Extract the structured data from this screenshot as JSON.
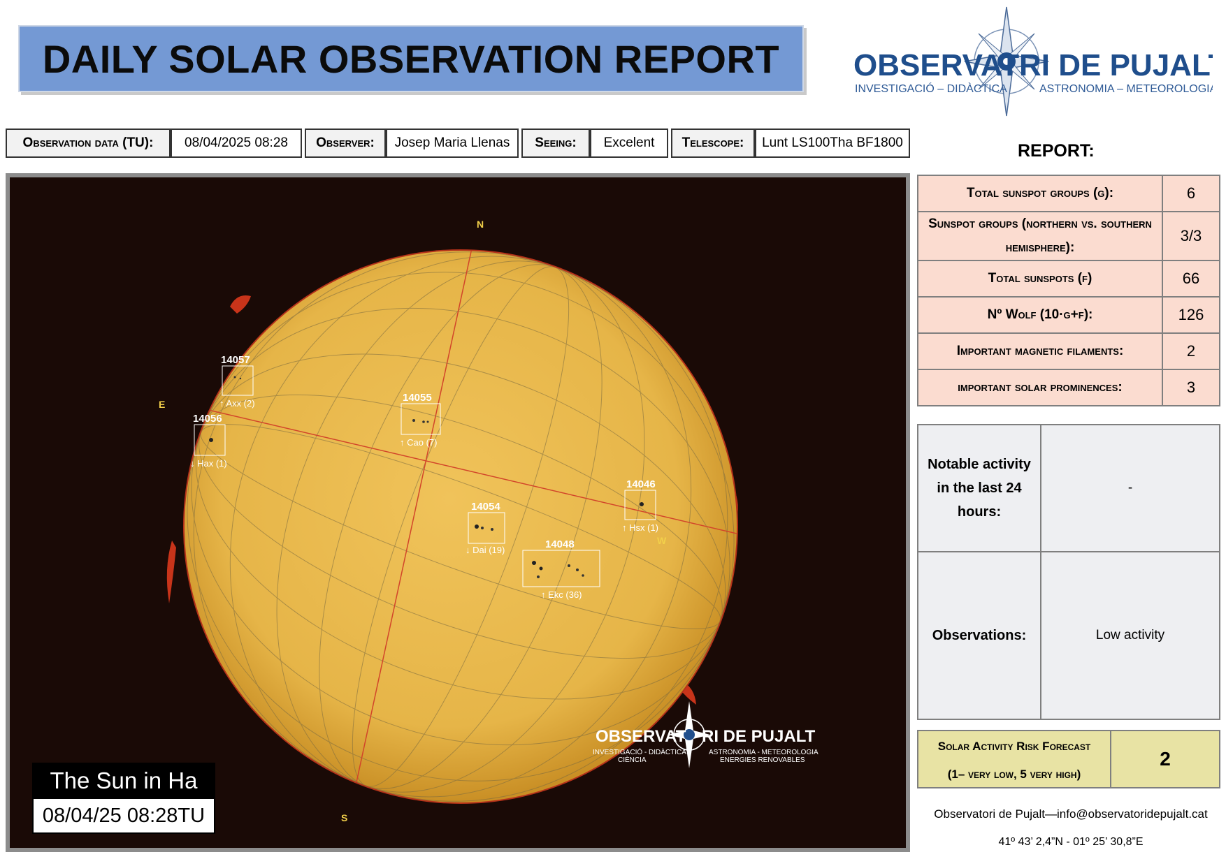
{
  "title": "DAILY SOLAR OBSERVATION REPORT",
  "logo": {
    "name": "OBSERVATORI DE PUJALT",
    "name_left": "OBSERVAT",
    "name_right": "RI DE PUJALT",
    "tagline_left": "INVESTIGACIÓ – DIDÀCTICA",
    "tagline_right": "ASTRONOMIA – METEOROLOGIA"
  },
  "info_bar": {
    "date_label": "Observation data (TU):",
    "date_value": "08/04/2025 08:28",
    "observer_label": "Observer:",
    "observer_value": "Josep Maria Llenas",
    "seeing_label": "Seeing:",
    "seeing_value": "Excelent",
    "telescope_label": "Telescope:",
    "telescope_value": "Lunt LS100Tha BF1800"
  },
  "image": {
    "caption_title": "The Sun in Ha",
    "caption_date": "08/04/25 08:28TU",
    "compass": {
      "n": "N",
      "s": "S",
      "e": "E",
      "w": "W"
    },
    "watermark_left": "OBSERVAT",
    "watermark_right": "RI DE PUJALT",
    "watermark_tag_left": "INVESTIGACIÓ - DIDÀCTICA",
    "watermark_tag_left2": "CIÈNCIA",
    "watermark_tag_right": "ASTRONOMIA - METEOROLOGIA",
    "watermark_tag_right2": "ENERGIES RENOVABLES",
    "regions": [
      {
        "id": "14057",
        "class": "↑ Axx (2)"
      },
      {
        "id": "14056",
        "class": "↓ Hax (1)"
      },
      {
        "id": "14055",
        "class": "↑ Cao (7)"
      },
      {
        "id": "14054",
        "class": "↓ Dai (19)"
      },
      {
        "id": "14048",
        "class": "↑ Ekc (36)"
      },
      {
        "id": "14046",
        "class": "↑ Hsx (1)"
      }
    ]
  },
  "report": {
    "heading": "REPORT:",
    "rows": [
      {
        "label": "Total sunspot groups (g):",
        "value": "6"
      },
      {
        "label": "Sunspot groups (northern vs. southern hemisphere):",
        "value": "3/3"
      },
      {
        "label": "Total sunspots (f)",
        "value": "66"
      },
      {
        "label": "Nº Wolf (10·g+f):",
        "value": "126"
      },
      {
        "label": "Important magnetic filaments:",
        "value": "2"
      },
      {
        "label": "important solar prominences:",
        "value": "3"
      }
    ],
    "notable_label": "Notable activity in the last 24 hours:",
    "notable_value": "-",
    "observations_label": "Observations:",
    "observations_value": "Low activity",
    "risk_label_1": "Solar Activity Risk Forecast",
    "risk_label_2": "(1– very low, 5 very high)",
    "risk_value": "2",
    "contact": "Observatori de Pujalt—info@observatoridepujalt.cat",
    "coords": "41º 43’ 2,4”N - 01º 25’ 30,8”E"
  },
  "colors": {
    "title_bg": "#7499d4",
    "logo_blue": "#1f4e8c",
    "report_bg": "#fbdcd0",
    "activity_bg": "#eeeff2",
    "risk_bg": "#e8e3a4",
    "sun": "#e8b84a"
  }
}
